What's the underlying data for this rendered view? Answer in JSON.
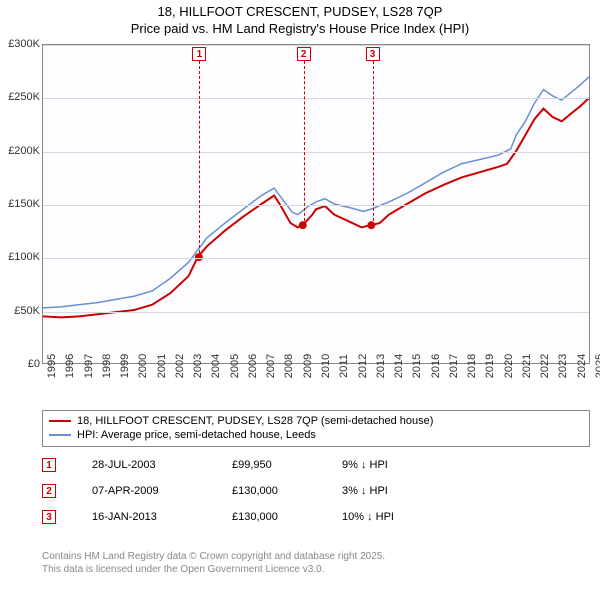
{
  "title_line1": "18, HILLFOOT CRESCENT, PUDSEY, LS28 7QP",
  "title_line2": "Price paid vs. HM Land Registry's House Price Index (HPI)",
  "chart": {
    "type": "line",
    "background_color": "#fdfdff",
    "grid_color": "#d8d8e0",
    "axis_color": "#888888",
    "y": {
      "min": 0,
      "max": 300000,
      "step": 50000,
      "labels": [
        "£0",
        "£50K",
        "£100K",
        "£150K",
        "£200K",
        "£250K",
        "£300K"
      ]
    },
    "x": {
      "min": 1995,
      "max": 2025,
      "labels": [
        "1995",
        "1996",
        "1997",
        "1998",
        "1999",
        "2000",
        "2001",
        "2002",
        "2003",
        "2004",
        "2005",
        "2006",
        "2007",
        "2008",
        "2009",
        "2010",
        "2011",
        "2012",
        "2013",
        "2014",
        "2015",
        "2016",
        "2017",
        "2018",
        "2019",
        "2020",
        "2021",
        "2022",
        "2023",
        "2024",
        "2025"
      ]
    },
    "series": [
      {
        "name": "price_paid",
        "label": "18, HILLFOOT CRESCENT, PUDSEY, LS28 7QP (semi-detached house)",
        "color": "#cc0000",
        "width": 2,
        "points": [
          [
            1995,
            44000
          ],
          [
            1996,
            43000
          ],
          [
            1997,
            44000
          ],
          [
            1998,
            46000
          ],
          [
            1999,
            48000
          ],
          [
            2000,
            50000
          ],
          [
            2001,
            55000
          ],
          [
            2002,
            66000
          ],
          [
            2003,
            82000
          ],
          [
            2003.5,
            99950
          ],
          [
            2004,
            110000
          ],
          [
            2005,
            125000
          ],
          [
            2006,
            138000
          ],
          [
            2007,
            150000
          ],
          [
            2007.7,
            158000
          ],
          [
            2008,
            150000
          ],
          [
            2008.6,
            132000
          ],
          [
            2009,
            128000
          ],
          [
            2009.27,
            130000
          ],
          [
            2009.8,
            140000
          ],
          [
            2010,
            145000
          ],
          [
            2010.5,
            148000
          ],
          [
            2011,
            140000
          ],
          [
            2011.5,
            136000
          ],
          [
            2012,
            132000
          ],
          [
            2012.5,
            128000
          ],
          [
            2013,
            130000
          ],
          [
            2013.5,
            132000
          ],
          [
            2014,
            140000
          ],
          [
            2015,
            150000
          ],
          [
            2016,
            160000
          ],
          [
            2017,
            168000
          ],
          [
            2018,
            175000
          ],
          [
            2019,
            180000
          ],
          [
            2020,
            185000
          ],
          [
            2020.5,
            188000
          ],
          [
            2021,
            200000
          ],
          [
            2021.5,
            215000
          ],
          [
            2022,
            230000
          ],
          [
            2022.5,
            240000
          ],
          [
            2023,
            232000
          ],
          [
            2023.5,
            228000
          ],
          [
            2024,
            235000
          ],
          [
            2024.5,
            242000
          ],
          [
            2025,
            250000
          ]
        ]
      },
      {
        "name": "hpi",
        "label": "HPI: Average price, semi-detached house, Leeds",
        "color": "#6a8fd0",
        "width": 1.5,
        "points": [
          [
            1995,
            52000
          ],
          [
            1996,
            53000
          ],
          [
            1997,
            55000
          ],
          [
            1998,
            57000
          ],
          [
            1999,
            60000
          ],
          [
            2000,
            63000
          ],
          [
            2001,
            68000
          ],
          [
            2002,
            80000
          ],
          [
            2003,
            95000
          ],
          [
            2004,
            118000
          ],
          [
            2005,
            132000
          ],
          [
            2006,
            145000
          ],
          [
            2007,
            158000
          ],
          [
            2007.7,
            165000
          ],
          [
            2008,
            158000
          ],
          [
            2008.7,
            142000
          ],
          [
            2009,
            140000
          ],
          [
            2009.6,
            148000
          ],
          [
            2010,
            152000
          ],
          [
            2010.5,
            155000
          ],
          [
            2011,
            150000
          ],
          [
            2012,
            146000
          ],
          [
            2012.6,
            143000
          ],
          [
            2013,
            145000
          ],
          [
            2014,
            152000
          ],
          [
            2015,
            160000
          ],
          [
            2016,
            170000
          ],
          [
            2017,
            180000
          ],
          [
            2018,
            188000
          ],
          [
            2019,
            192000
          ],
          [
            2020,
            196000
          ],
          [
            2020.7,
            202000
          ],
          [
            2021,
            215000
          ],
          [
            2021.5,
            228000
          ],
          [
            2022,
            245000
          ],
          [
            2022.5,
            258000
          ],
          [
            2023,
            252000
          ],
          [
            2023.5,
            248000
          ],
          [
            2024,
            255000
          ],
          [
            2024.5,
            262000
          ],
          [
            2025,
            270000
          ]
        ]
      }
    ],
    "sale_markers": [
      {
        "idx": "1",
        "year": 2003.56,
        "price": 99950
      },
      {
        "idx": "2",
        "year": 2009.27,
        "price": 130000
      },
      {
        "idx": "3",
        "year": 2013.04,
        "price": 130000
      }
    ]
  },
  "legend": {
    "border_color": "#888888"
  },
  "sales": [
    {
      "idx": "1",
      "date": "28-JUL-2003",
      "price": "£99,950",
      "diff": "9% ↓ HPI"
    },
    {
      "idx": "2",
      "date": "07-APR-2009",
      "price": "£130,000",
      "diff": "3% ↓ HPI"
    },
    {
      "idx": "3",
      "date": "16-JAN-2013",
      "price": "£130,000",
      "diff": "10% ↓ HPI"
    }
  ],
  "footer_line1": "Contains HM Land Registry data © Crown copyright and database right 2025.",
  "footer_line2": "This data is licensed under the Open Government Licence v3.0."
}
